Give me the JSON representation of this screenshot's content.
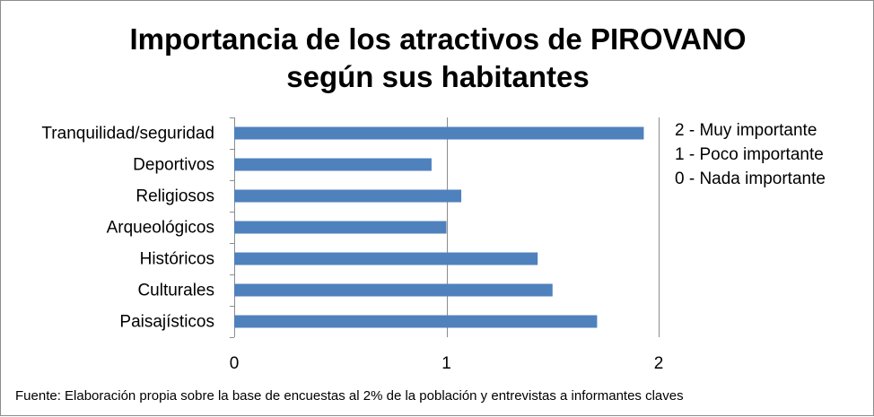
{
  "title": {
    "line1": "Importancia de los atractivos de PIROVANO",
    "line2": "según sus habitantes"
  },
  "legend_text": [
    "2 - Muy importante",
    "1 - Poco importante",
    "0 - Nada importante"
  ],
  "source": "Fuente: Elaboración propia sobre la base de encuestas al 2% de la población y entrevistas a informantes claves",
  "colors": {
    "bar": "#4f81bd",
    "grid": "#8c8c8c",
    "axis": "#8c8c8c"
  },
  "chart_data": {
    "type": "bar",
    "orientation": "horizontal",
    "categories": [
      "Tranquilidad/seguridad",
      "Deportivos",
      "Religiosos",
      "Arqueológicos",
      "Históricos",
      "Culturales",
      "Paisajísticos"
    ],
    "values": [
      1.93,
      0.93,
      1.07,
      1.0,
      1.43,
      1.5,
      1.71
    ],
    "xlim": [
      0,
      2
    ],
    "xticks": [
      "0",
      "1",
      "2"
    ],
    "grid": true,
    "legend_position": "right"
  }
}
